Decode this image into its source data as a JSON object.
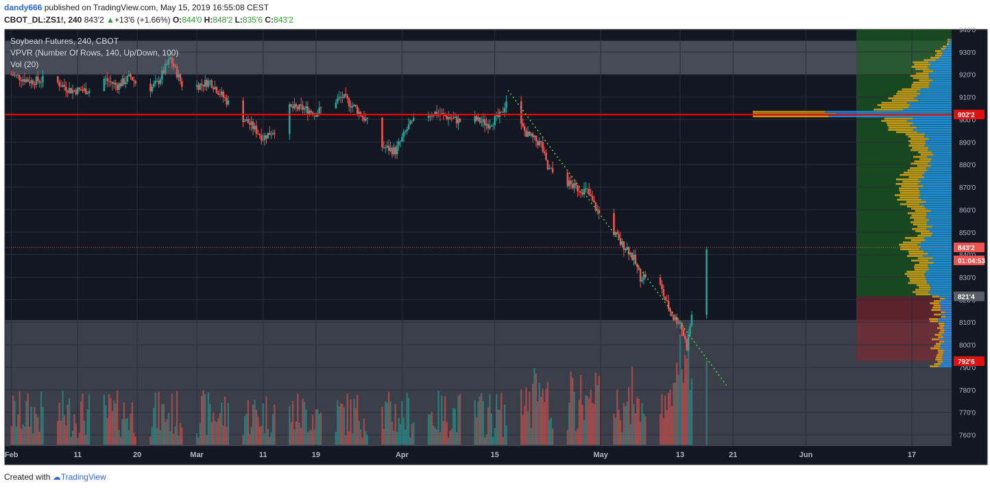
{
  "header": {
    "user": "dandy666",
    "published": "published on TradingView.com, May 15, 2019 16:55:08 CEST",
    "symbol": "CBOT_DL:ZS1!, 240",
    "last": "843'2",
    "change": "+13'6 (+1.66%)",
    "o_label": "O:",
    "o": "844'0",
    "h_label": "H:",
    "h": "848'2",
    "l_label": "L:",
    "l": "835'6",
    "c_label": "C:",
    "c": "843'2"
  },
  "legend": {
    "title": "Soybean Futures, 240, CBOT",
    "vpvr": "VPVR (Number Of Rows, 140, Up/Down, 100)",
    "vol": "Vol (20)"
  },
  "footer": {
    "created": "Created with",
    "brand": "TradingView"
  },
  "colors": {
    "bg": "#131722",
    "up": "#26a69a",
    "down": "#ef5350",
    "vp_up": "#2196f3",
    "vp_down": "#d4a017",
    "line": "#ff0000",
    "trend": "#4cdf4c"
  },
  "chart_data": {
    "type": "candlestick",
    "title": "Soybean Futures, 240, CBOT",
    "price_axis": {
      "ylim": [
        755,
        940
      ],
      "ticks": [
        "940'0",
        "930'0",
        "920'0",
        "910'0",
        "900'0",
        "890'0",
        "880'0",
        "870'0",
        "860'0",
        "850'0",
        "840'0",
        "830'0",
        "820'0",
        "810'0",
        "800'0",
        "790'0",
        "780'0",
        "770'0",
        "760'0"
      ]
    },
    "time_axis": {
      "ticks": [
        {
          "label": "Feb",
          "d": 0
        },
        {
          "label": "11",
          "d": 10
        },
        {
          "label": "20",
          "d": 19
        },
        {
          "label": "Mar",
          "d": 28
        },
        {
          "label": "11",
          "d": 38
        },
        {
          "label": "19",
          "d": 46
        },
        {
          "label": "Apr",
          "d": 59
        },
        {
          "label": "15",
          "d": 73
        },
        {
          "label": "May",
          "d": 89
        },
        {
          "label": "13",
          "d": 101
        },
        {
          "label": "21",
          "d": 109
        },
        {
          "label": "Jun",
          "d": 120
        },
        {
          "label": "17",
          "d": 136
        }
      ],
      "xlim": [
        -1,
        142
      ]
    },
    "price_path": [
      [
        0,
        920
      ],
      [
        3,
        917
      ],
      [
        6,
        918
      ],
      [
        9,
        913
      ],
      [
        12,
        913
      ],
      [
        14,
        918
      ],
      [
        16,
        915
      ],
      [
        18,
        919
      ],
      [
        20,
        912
      ],
      [
        22,
        916
      ],
      [
        24,
        927
      ],
      [
        26,
        914
      ],
      [
        28,
        915
      ],
      [
        30,
        917
      ],
      [
        32,
        910
      ],
      [
        34,
        903
      ],
      [
        36,
        898
      ],
      [
        38,
        892
      ],
      [
        40,
        896
      ],
      [
        42,
        905
      ],
      [
        44,
        905
      ],
      [
        46,
        903
      ],
      [
        48,
        907
      ],
      [
        50,
        910
      ],
      [
        52,
        905
      ],
      [
        54,
        898
      ],
      [
        56,
        888
      ],
      [
        58,
        886
      ],
      [
        60,
        897
      ],
      [
        62,
        902
      ],
      [
        64,
        903
      ],
      [
        66,
        901
      ],
      [
        68,
        899
      ],
      [
        70,
        900
      ],
      [
        72,
        898
      ],
      [
        74,
        902
      ],
      [
        75,
        911
      ],
      [
        76,
        901
      ],
      [
        78,
        893
      ],
      [
        80,
        889
      ],
      [
        81,
        878
      ],
      [
        83,
        874
      ],
      [
        85,
        870
      ],
      [
        87,
        868
      ],
      [
        88,
        862
      ],
      [
        89,
        857
      ],
      [
        91,
        850
      ],
      [
        92,
        845
      ],
      [
        93,
        843
      ],
      [
        94,
        838
      ],
      [
        95,
        830
      ],
      [
        96,
        831
      ],
      [
        97,
        833
      ],
      [
        98,
        826
      ],
      [
        99,
        818
      ],
      [
        100,
        812
      ],
      [
        101,
        810
      ],
      [
        102,
        799
      ],
      [
        103,
        818
      ],
      [
        104,
        834
      ],
      [
        105,
        843
      ]
    ],
    "key_levels": {
      "poc": "902'2",
      "last": "843'2",
      "val": "821'4",
      "low": "792'6",
      "countdown": "01:04:53"
    },
    "poc": 902.25,
    "last": 843.25,
    "value_area": [
      821.5,
      935
    ],
    "low_marker": 792.75,
    "supply_zone": [
      920,
      935
    ],
    "demand_zone": [
      755,
      811
    ],
    "trendline": [
      [
        75,
        913
      ],
      [
        108,
        782
      ]
    ]
  }
}
